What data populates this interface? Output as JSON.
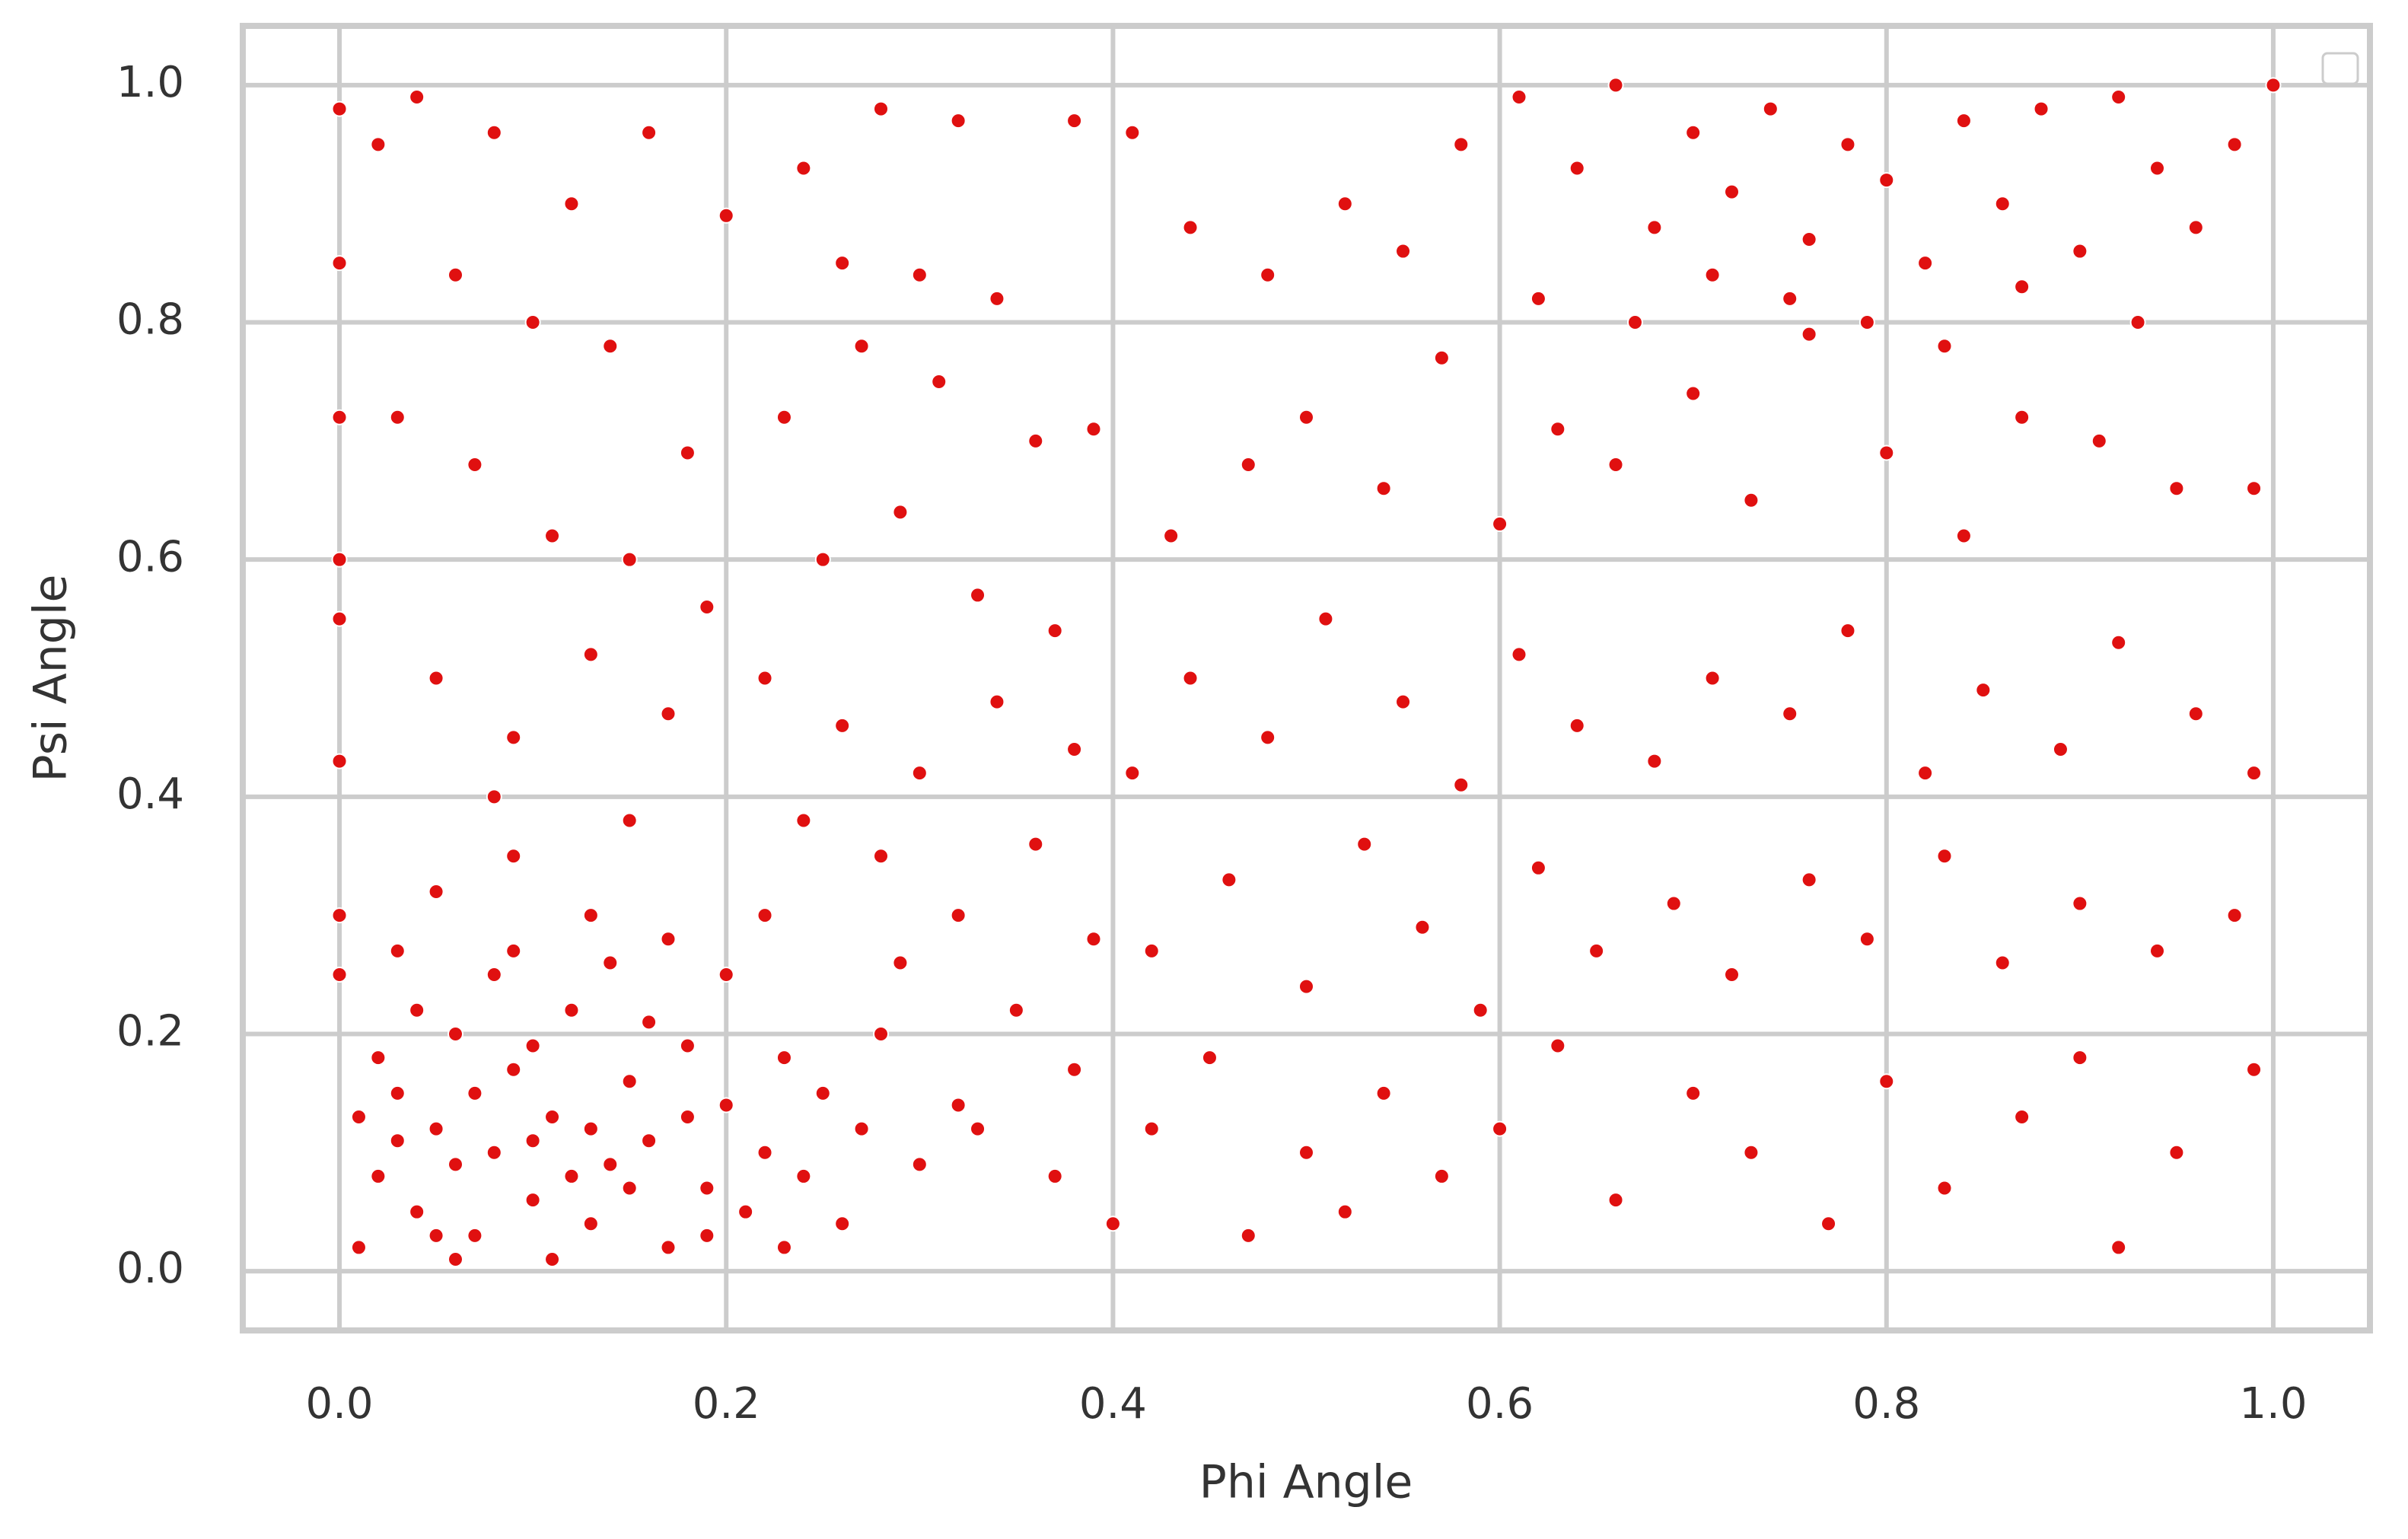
{
  "chart_data": {
    "type": "scatter",
    "x_label": "Phi Angle",
    "y_label": "Psi Angle",
    "color": "#e01010",
    "grid": true,
    "xlim": [
      -0.05,
      1.05
    ],
    "ylim": [
      -0.05,
      1.05
    ],
    "xticks": [
      {
        "value": 0,
        "label": "0.0"
      },
      0.2,
      0.4,
      0.6,
      0.8,
      {
        "value": 1,
        "label": "1.0"
      }
    ],
    "yticks": [
      {
        "value": 0,
        "label": "0.0"
      },
      0.2,
      0.4,
      0.6,
      0.8,
      {
        "value": 1,
        "label": "1.0"
      }
    ],
    "x": [
      0.01,
      0.02,
      0.03,
      0.04,
      0.05,
      0.06,
      0.07,
      0.08,
      0.09,
      0.1,
      0.11,
      0.12,
      0.13,
      0.14,
      0.15,
      0.16,
      0.17,
      0.18,
      0.19,
      0.2,
      0.21,
      0.22,
      0.23,
      0.24,
      0.02,
      0.04,
      0.06,
      0.08,
      0.1,
      0.12,
      0.14,
      0.16,
      0.18,
      0.03,
      0.05,
      0.07,
      0.09,
      0.11,
      0.13,
      0.15,
      0.01,
      0.03,
      0.05,
      0.09,
      0.13,
      0.17,
      0.2,
      0.22,
      0.25,
      0.27,
      0.28,
      0.26,
      0.3,
      0.32,
      0.29,
      0.06,
      0.1,
      0.19,
      0.23,
      0.15,
      0,
      0,
      0,
      0,
      0,
      0,
      0,
      0,
      0.02,
      0.04,
      0.08,
      0.12,
      0.16,
      0.06,
      0.1,
      0.14,
      0.03,
      0.07,
      0.11,
      0.15,
      0.18,
      0.05,
      0.09,
      0.13,
      0.17,
      0.19,
      0.08,
      0.2,
      0.24,
      0.28,
      0.32,
      0.26,
      0.3,
      0.34,
      0.38,
      0.41,
      0.23,
      0.27,
      0.31,
      0.36,
      0.39,
      0.25,
      0.29,
      0.33,
      0.37,
      0.22,
      0.26,
      0.3,
      0.34,
      0.38,
      0.24,
      0.28,
      0.32,
      0.36,
      0.39,
      0.35,
      0.38,
      0.33,
      0.37,
      0.4,
      0.42,
      0.45,
      0.47,
      0.5,
      0.52,
      0.54,
      0.57,
      0.6,
      0.63,
      0.66,
      0.7,
      0.73,
      0.77,
      0.8,
      0.83,
      0.87,
      0.9,
      0.92,
      0.95,
      0.99,
      0.42,
      0.46,
      0.5,
      0.53,
      0.56,
      0.59,
      0.62,
      0.65,
      0.69,
      0.72,
      0.76,
      0.79,
      0.83,
      0.86,
      0.9,
      0.94,
      0.98,
      0.41,
      0.44,
      0.48,
      0.51,
      0.55,
      0.58,
      0.61,
      0.64,
      0.68,
      0.71,
      0.75,
      0.78,
      0.82,
      0.85,
      0.89,
      0.92,
      0.96,
      0.99,
      0.43,
      0.47,
      0.5,
      0.54,
      0.57,
      0.6,
      0.63,
      0.66,
      0.7,
      0.73,
      0.76,
      0.8,
      0.84,
      0.87,
      0.91,
      0.95,
      0.99,
      0.44,
      0.48,
      0.52,
      0.55,
      0.58,
      0.61,
      0.64,
      0.66,
      0.68,
      0.7,
      0.72,
      0.74,
      0.76,
      0.78,
      0.8,
      0.82,
      0.84,
      0.86,
      0.88,
      0.9,
      0.92,
      0.94,
      0.96,
      0.98,
      1.0,
      0.62,
      0.67,
      0.71,
      0.75,
      0.79,
      0.83,
      0.87,
      0.93
    ],
    "y": [
      0.02,
      0.08,
      0.15,
      0.05,
      0.12,
      0.2,
      0.03,
      0.1,
      0.17,
      0.06,
      0.13,
      0.22,
      0.04,
      0.09,
      0.16,
      0.11,
      0.02,
      0.19,
      0.07,
      0.14,
      0.05,
      0.1,
      0.18,
      0.08,
      0.18,
      0.22,
      0.09,
      0.25,
      0.19,
      0.08,
      0.26,
      0.21,
      0.13,
      0.11,
      0.03,
      0.15,
      0.27,
      0.01,
      0.12,
      0.07,
      0.13,
      0.27,
      0.32,
      0.35,
      0.3,
      0.28,
      0.25,
      0.3,
      0.15,
      0.12,
      0.2,
      0.04,
      0.09,
      0.14,
      0.26,
      0.01,
      0.11,
      0.03,
      0.02,
      0.38,
      0.98,
      0.85,
      0.72,
      0.6,
      0.43,
      0.3,
      0.55,
      0.25,
      0.95,
      0.99,
      0.96,
      0.9,
      0.96,
      0.84,
      0.8,
      0.78,
      0.72,
      0.68,
      0.62,
      0.6,
      0.69,
      0.5,
      0.45,
      0.52,
      0.47,
      0.56,
      0.4,
      0.89,
      0.93,
      0.98,
      0.97,
      0.85,
      0.84,
      0.82,
      0.97,
      0.96,
      0.72,
      0.78,
      0.75,
      0.7,
      0.71,
      0.6,
      0.64,
      0.57,
      0.54,
      0.5,
      0.46,
      0.42,
      0.48,
      0.44,
      0.38,
      0.35,
      0.3,
      0.36,
      0.28,
      0.22,
      0.17,
      0.12,
      0.08,
      0.04,
      0.12,
      0.18,
      0.03,
      0.1,
      0.05,
      0.15,
      0.08,
      0.12,
      0.19,
      0.06,
      0.15,
      0.1,
      0.04,
      0.16,
      0.07,
      0.13,
      0.18,
      0.02,
      0.1,
      0.17,
      0.27,
      0.33,
      0.24,
      0.36,
      0.29,
      0.22,
      0.34,
      0.27,
      0.31,
      0.25,
      0.33,
      0.28,
      0.35,
      0.26,
      0.31,
      0.27,
      0.3,
      0.42,
      0.5,
      0.45,
      0.55,
      0.48,
      0.41,
      0.52,
      0.46,
      0.43,
      0.5,
      0.47,
      0.54,
      0.42,
      0.49,
      0.44,
      0.53,
      0.47,
      0.42,
      0.62,
      0.68,
      0.72,
      0.66,
      0.77,
      0.63,
      0.71,
      0.68,
      0.74,
      0.65,
      0.79,
      0.69,
      0.62,
      0.72,
      0.7,
      0.66,
      0.66,
      0.88,
      0.84,
      0.9,
      0.86,
      0.95,
      0.99,
      0.93,
      1.0,
      0.88,
      0.96,
      0.91,
      0.98,
      0.87,
      0.95,
      0.92,
      0.85,
      0.97,
      0.9,
      0.98,
      0.86,
      0.99,
      0.93,
      0.88,
      0.95,
      1.0,
      0.82,
      0.8,
      0.84,
      0.82,
      0.8,
      0.78,
      0.83,
      0.8
    ]
  }
}
